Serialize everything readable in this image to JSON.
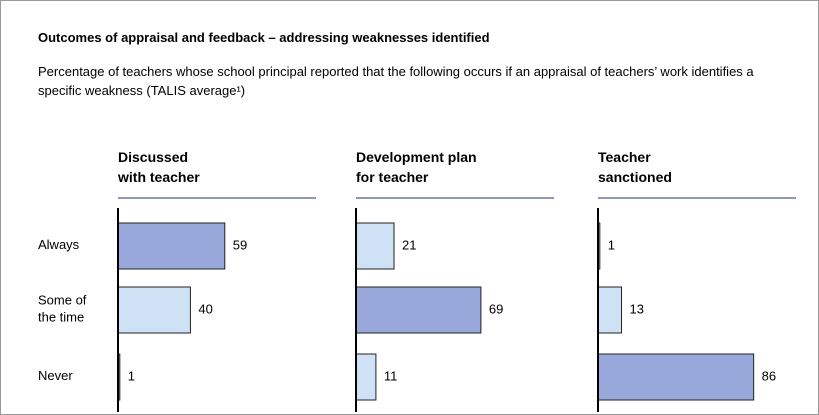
{
  "chart_data": {
    "type": "bar",
    "orientation": "horizontal",
    "title": "Outcomes of appraisal and feedback – addressing weaknesses identified",
    "subtitle": "Percentage of teachers whose school principal reported that the following occurs if an appraisal of teachers’ work identifies a specific weakness (TALIS average¹)",
    "categories": [
      "Always",
      "Some of\nthe time",
      "Never"
    ],
    "xlim": [
      0,
      100
    ],
    "panels": [
      {
        "title": "Discussed\nwith teacher",
        "values": [
          59,
          40,
          1
        ],
        "colors": [
          "#99a8da",
          "#cfe2f5",
          "#99a8da"
        ]
      },
      {
        "title": "Development plan\nfor teacher",
        "values": [
          21,
          69,
          11
        ],
        "colors": [
          "#cfe2f5",
          "#99a8da",
          "#cfe2f5"
        ]
      },
      {
        "title": "Teacher\nsanctioned",
        "values": [
          1,
          13,
          86
        ],
        "colors": [
          "#cfe2f5",
          "#cfe2f5",
          "#99a8da"
        ]
      }
    ]
  }
}
